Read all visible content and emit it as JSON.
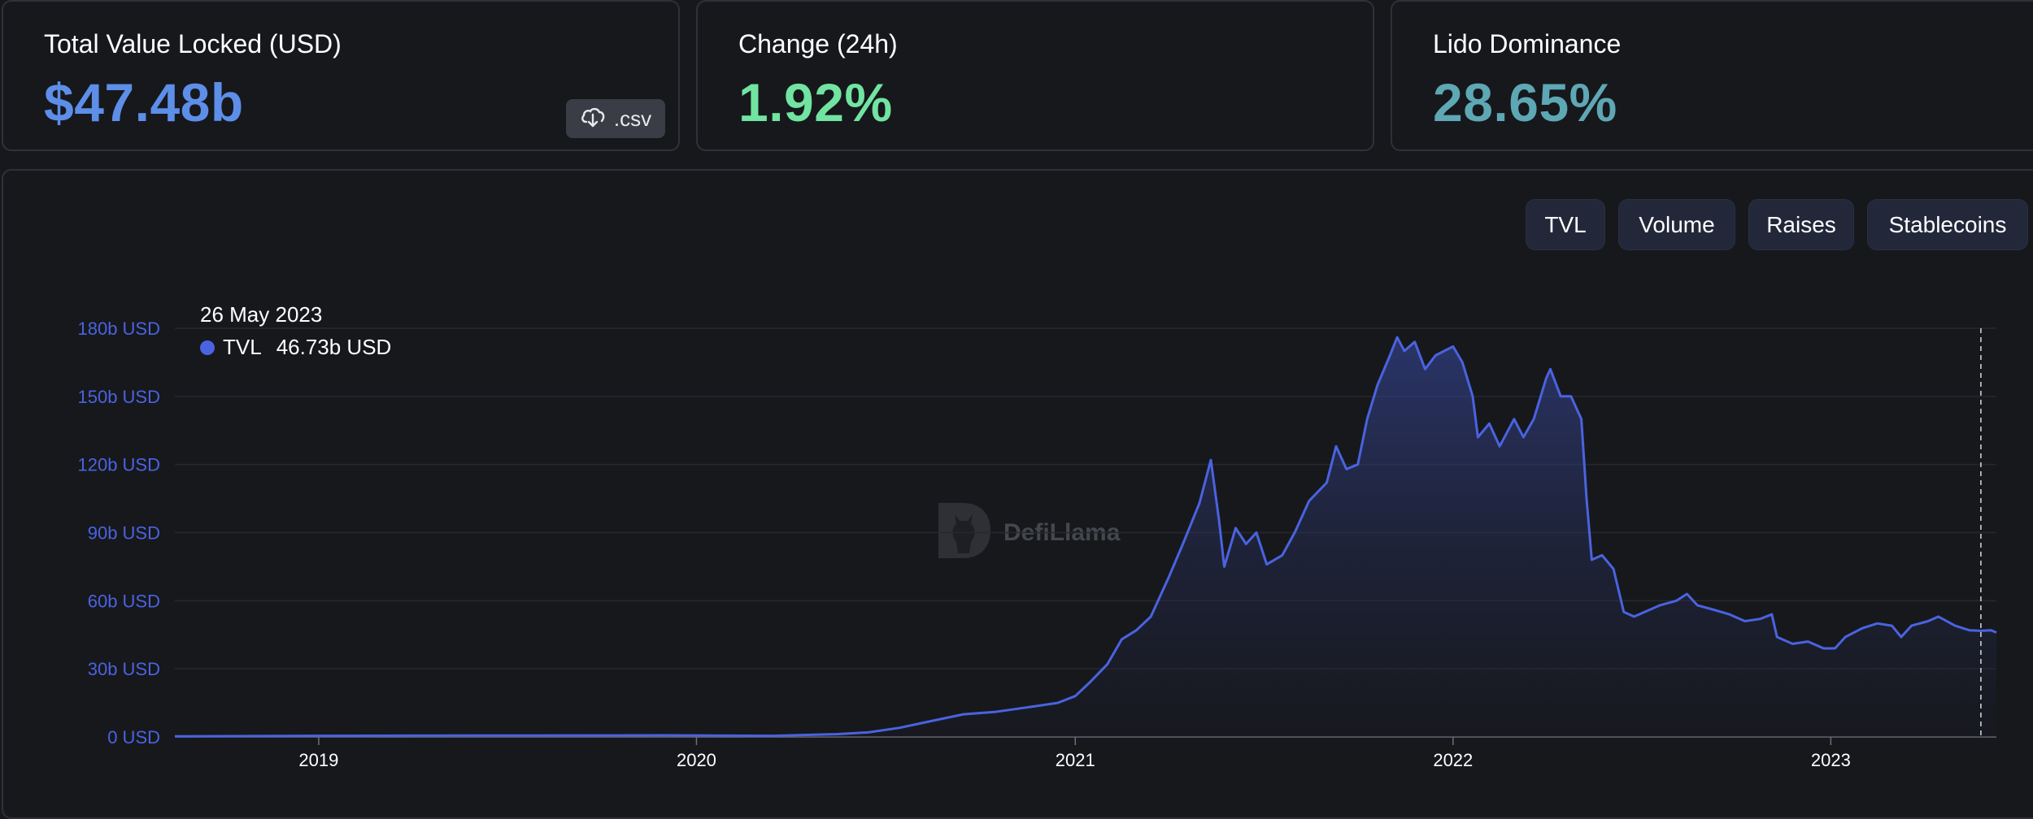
{
  "stats": [
    {
      "label": "Total Value Locked (USD)",
      "value": "$47.48b",
      "color": "#5d8ee8"
    },
    {
      "label": "Change (24h)",
      "value": "1.92%",
      "color": "#71e4a1"
    },
    {
      "label": "Lido Dominance",
      "value": "28.65%",
      "color": "#5ea7b4"
    }
  ],
  "csv_button": {
    "label": ".csv",
    "icon": "cloud-download-icon"
  },
  "tabs": [
    "TVL",
    "Volume",
    "Raises",
    "Stablecoins"
  ],
  "tooltip": {
    "date": "26 May 2023",
    "series": "TVL",
    "value": "46.73b USD"
  },
  "watermark": "DefiLlama",
  "colors": {
    "line": "#4a63e0",
    "axis_text": "#4a63e0",
    "grid": "#26282f"
  },
  "chart_data": {
    "type": "area",
    "series": [
      {
        "name": "TVL",
        "unit": "b USD"
      }
    ],
    "y_ticks": [
      "0 USD",
      "30b USD",
      "60b USD",
      "90b USD",
      "120b USD",
      "150b USD",
      "180b USD"
    ],
    "y_tick_values": [
      0,
      30,
      60,
      90,
      120,
      150,
      180
    ],
    "x_ticks": [
      "2019",
      "2020",
      "2021",
      "2022",
      "2023"
    ],
    "ylim": [
      0,
      180
    ],
    "xlim": [
      "2018-08-15",
      "2023-06-10"
    ],
    "grid": true,
    "points": [
      [
        "2018-08-15",
        0.3
      ],
      [
        "2019-01-01",
        0.5
      ],
      [
        "2019-06-01",
        0.6
      ],
      [
        "2019-12-01",
        0.7
      ],
      [
        "2020-03-15",
        0.5
      ],
      [
        "2020-05-15",
        1.2
      ],
      [
        "2020-06-15",
        2
      ],
      [
        "2020-07-15",
        4
      ],
      [
        "2020-08-15",
        7
      ],
      [
        "2020-09-15",
        10
      ],
      [
        "2020-10-15",
        11
      ],
      [
        "2020-11-15",
        13
      ],
      [
        "2020-12-15",
        15
      ],
      [
        "2021-01-01",
        18
      ],
      [
        "2021-01-15",
        24
      ],
      [
        "2021-02-01",
        32
      ],
      [
        "2021-02-15",
        43
      ],
      [
        "2021-03-01",
        47
      ],
      [
        "2021-03-15",
        53
      ],
      [
        "2021-04-01",
        70
      ],
      [
        "2021-04-15",
        85
      ],
      [
        "2021-05-01",
        103
      ],
      [
        "2021-05-12",
        122
      ],
      [
        "2021-05-20",
        95
      ],
      [
        "2021-05-25",
        75
      ],
      [
        "2021-06-05",
        92
      ],
      [
        "2021-06-15",
        85
      ],
      [
        "2021-06-25",
        90
      ],
      [
        "2021-07-05",
        76
      ],
      [
        "2021-07-20",
        80
      ],
      [
        "2021-08-01",
        90
      ],
      [
        "2021-08-15",
        104
      ],
      [
        "2021-09-01",
        112
      ],
      [
        "2021-09-10",
        128
      ],
      [
        "2021-09-20",
        118
      ],
      [
        "2021-10-01",
        120
      ],
      [
        "2021-10-10",
        140
      ],
      [
        "2021-10-20",
        155
      ],
      [
        "2021-11-01",
        168
      ],
      [
        "2021-11-08",
        176
      ],
      [
        "2021-11-15",
        170
      ],
      [
        "2021-11-25",
        174
      ],
      [
        "2021-12-05",
        162
      ],
      [
        "2021-12-15",
        168
      ],
      [
        "2022-01-01",
        172
      ],
      [
        "2022-01-10",
        165
      ],
      [
        "2022-01-20",
        150
      ],
      [
        "2022-01-25",
        132
      ],
      [
        "2022-02-05",
        138
      ],
      [
        "2022-02-15",
        128
      ],
      [
        "2022-03-01",
        140
      ],
      [
        "2022-03-10",
        132
      ],
      [
        "2022-03-20",
        140
      ],
      [
        "2022-04-01",
        158
      ],
      [
        "2022-04-05",
        162
      ],
      [
        "2022-04-15",
        150
      ],
      [
        "2022-04-25",
        150
      ],
      [
        "2022-05-05",
        140
      ],
      [
        "2022-05-10",
        105
      ],
      [
        "2022-05-15",
        78
      ],
      [
        "2022-05-25",
        80
      ],
      [
        "2022-06-05",
        74
      ],
      [
        "2022-06-15",
        55
      ],
      [
        "2022-06-25",
        53
      ],
      [
        "2022-07-05",
        55
      ],
      [
        "2022-07-20",
        58
      ],
      [
        "2022-08-05",
        60
      ],
      [
        "2022-08-15",
        63
      ],
      [
        "2022-08-25",
        58
      ],
      [
        "2022-09-10",
        56
      ],
      [
        "2022-09-25",
        54
      ],
      [
        "2022-10-10",
        51
      ],
      [
        "2022-10-25",
        52
      ],
      [
        "2022-11-05",
        54
      ],
      [
        "2022-11-10",
        44
      ],
      [
        "2022-11-25",
        41
      ],
      [
        "2022-12-10",
        42
      ],
      [
        "2022-12-25",
        39
      ],
      [
        "2023-01-05",
        39
      ],
      [
        "2023-01-15",
        44
      ],
      [
        "2023-02-01",
        48
      ],
      [
        "2023-02-15",
        50
      ],
      [
        "2023-03-01",
        49
      ],
      [
        "2023-03-10",
        44
      ],
      [
        "2023-03-20",
        49
      ],
      [
        "2023-04-05",
        51
      ],
      [
        "2023-04-15",
        53
      ],
      [
        "2023-05-01",
        49
      ],
      [
        "2023-05-15",
        47
      ],
      [
        "2023-05-26",
        46.73
      ],
      [
        "2023-06-05",
        47
      ],
      [
        "2023-06-10",
        46
      ]
    ],
    "highlight_date": "2023-05-26"
  }
}
